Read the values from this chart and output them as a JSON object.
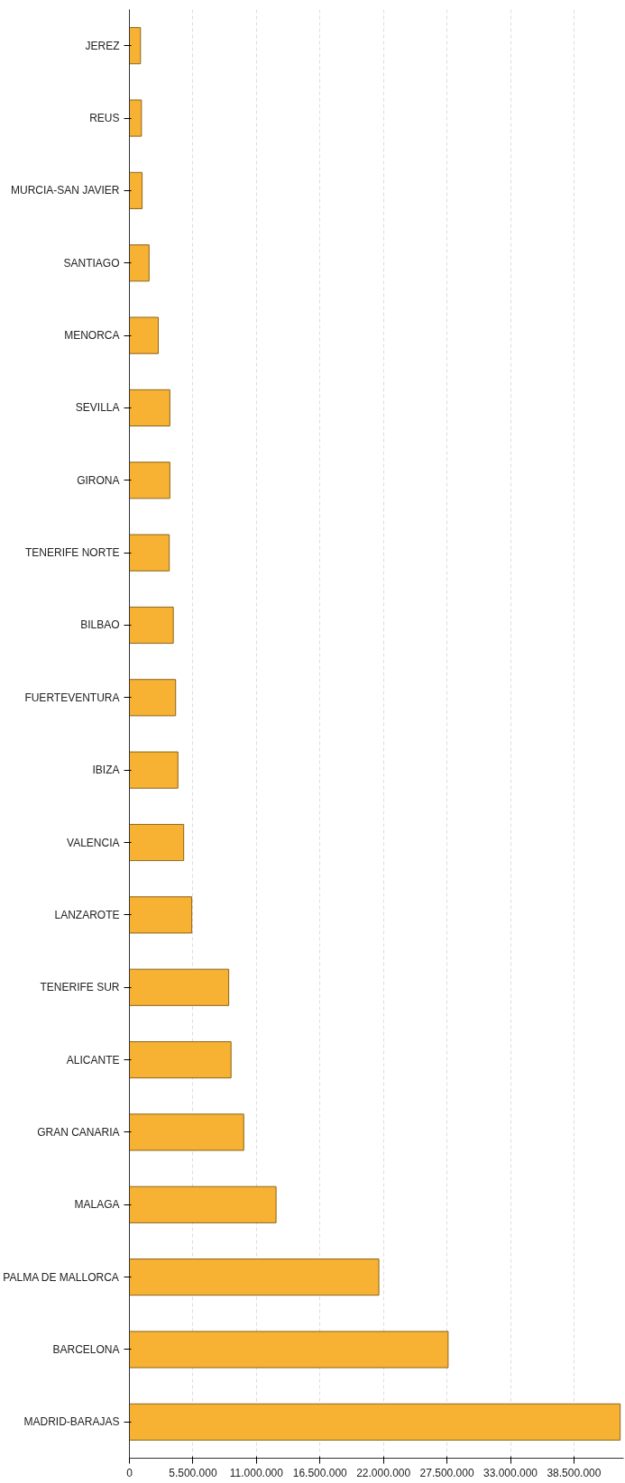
{
  "chart_data": {
    "type": "bar",
    "orientation": "horizontal",
    "categories": [
      "JEREZ",
      "REUS",
      "MURCIA-SAN JAVIER",
      "SANTIAGO",
      "MENORCA",
      "SEVILLA",
      "GIRONA",
      "TENERIFE NORTE",
      "BILBAO",
      "FUERTEVENTURA",
      "IBIZA",
      "VALENCIA",
      "LANZAROTE",
      "TENERIFE SUR",
      "ALICANTE",
      "GRAN CANARIA",
      "MALAGA",
      "PALMA DE MALLORCA",
      "BARCELONA",
      "MADRID-BARAJAS"
    ],
    "values": [
      960000,
      1040000,
      1100000,
      1700000,
      2500000,
      3500000,
      3500000,
      3450000,
      3800000,
      4000000,
      4200000,
      4700000,
      5400000,
      8600000,
      8800000,
      9900000,
      12700000,
      21600000,
      27600000,
      42500000
    ],
    "color": "#f7b234",
    "xlim": [
      0,
      42800000
    ],
    "xticks": [
      0,
      {
        "value": 5500000,
        "label": "5.500.000"
      },
      {
        "value": 11000000,
        "label": "11.000.000"
      },
      {
        "value": 16500000,
        "label": "16.500.000"
      },
      {
        "value": 22000000,
        "label": "22.000.000"
      },
      {
        "value": 27500000,
        "label": "27.500.000"
      },
      {
        "value": 33000000,
        "label": "33.000.000"
      },
      {
        "value": 38500000,
        "label": "38.500.000"
      }
    ],
    "grid": "x"
  }
}
